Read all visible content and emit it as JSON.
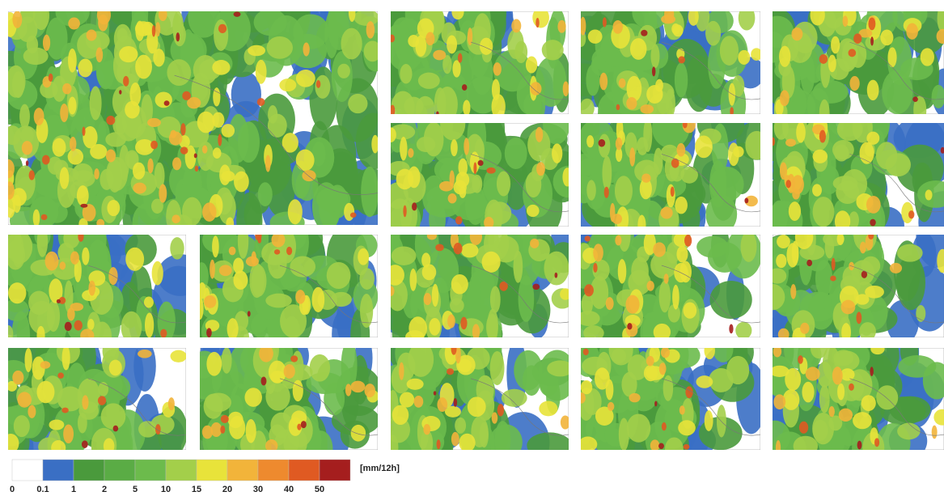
{
  "colorbar": {
    "unit": "[mm/12h]",
    "ticks": [
      "0",
      "0.1",
      "1",
      "2",
      "5",
      "10",
      "15",
      "20",
      "30",
      "40",
      "50"
    ],
    "colors": [
      "#ffffff",
      "#3a6fc4",
      "#4a9a3c",
      "#5aac45",
      "#6cbb4c",
      "#a3cf4a",
      "#e8e33a",
      "#f2b43a",
      "#ee8a2e",
      "#e05a22",
      "#a51e1e"
    ]
  }
}
